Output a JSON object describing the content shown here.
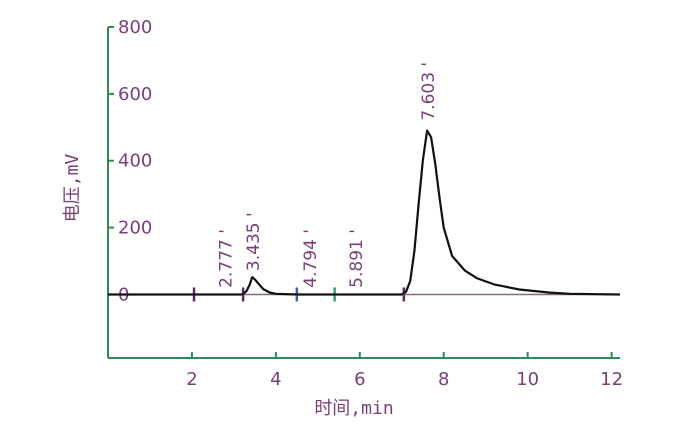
{
  "chart_data": {
    "type": "line",
    "title": "",
    "xlabel": "时间,min",
    "ylabel": "电压,mV",
    "xlim": [
      0,
      12.2
    ],
    "ylim": [
      -190,
      800
    ],
    "x_ticks": [
      2,
      4,
      6,
      8,
      10,
      12
    ],
    "y_ticks": [
      0,
      200,
      400,
      600,
      800
    ],
    "grid": false,
    "legend": "none",
    "colors": {
      "axis": "#2e8b57",
      "text": "#7a3f78",
      "trace": "#111111",
      "baseline": "#8a6a6a",
      "marker": "#5a2a66"
    },
    "series": [
      {
        "x": [
          0,
          2.0,
          3.2,
          3.3,
          3.38,
          3.435,
          3.5,
          3.6,
          3.7,
          3.85,
          4.0,
          4.5,
          6.0,
          7.0,
          7.1,
          7.2,
          7.3,
          7.4,
          7.5,
          7.603,
          7.7,
          7.8,
          7.9,
          8.0,
          8.2,
          8.5,
          8.8,
          9.2,
          9.8,
          10.5,
          11.0,
          12.2
        ],
        "y": [
          0,
          0,
          0,
          10,
          30,
          52,
          45,
          30,
          16,
          6,
          2,
          0,
          0,
          0,
          8,
          40,
          130,
          270,
          400,
          490,
          470,
          390,
          290,
          200,
          115,
          72,
          48,
          30,
          15,
          6,
          2,
          0
        ]
      }
    ],
    "peaks": [
      {
        "label": "2.777 '",
        "x": 2.777,
        "label_y": 5
      },
      {
        "label": "3.435 '",
        "x": 3.435,
        "label_y": 55
      },
      {
        "label": "4.794 '",
        "x": 4.794,
        "label_y": 5
      },
      {
        "label": "5.891 '",
        "x": 5.891,
        "label_y": 5
      },
      {
        "label": "7.603 '",
        "x": 7.603,
        "label_y": 505
      }
    ],
    "integration_markers": [
      {
        "x": 2.05,
        "color": "#5a2a66"
      },
      {
        "x": 3.22,
        "color": "#5a2a66"
      },
      {
        "x": 4.5,
        "color": "#4a5aa8"
      },
      {
        "x": 5.4,
        "color": "#3a9a8a"
      },
      {
        "x": 7.05,
        "color": "#5a2a66"
      }
    ]
  }
}
